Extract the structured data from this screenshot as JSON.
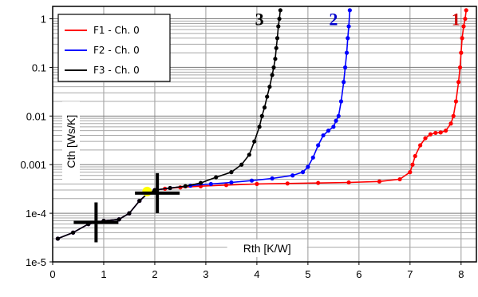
{
  "chart_data": {
    "type": "scatter",
    "xlabel": "Rth  [K/W]",
    "ylabel": "Cth  [Ws/K]",
    "xlim": [
      0,
      8.3
    ],
    "ylim": [
      1e-05,
      1.8
    ],
    "yscale": "log",
    "grid": true,
    "legend_position": "top-left",
    "x_ticks": [
      "0",
      "1",
      "2",
      "3",
      "4",
      "5",
      "6",
      "7",
      "8"
    ],
    "y_ticks": [
      "1e-5",
      "1e-4",
      "0.001",
      "0.01",
      "0.1",
      "1"
    ],
    "colors": {
      "F1 - Ch. 0": "#ff0000",
      "F2 - Ch. 0": "#0000ff",
      "F3 - Ch. 0": "#000000"
    },
    "series": [
      {
        "name": "F1 - Ch. 0",
        "color": "#ff0000",
        "x": [
          0.1,
          0.4,
          0.7,
          1.0,
          1.3,
          1.5,
          1.7,
          1.85,
          2.0,
          2.2,
          2.5,
          2.9,
          3.4,
          4.0,
          4.6,
          5.2,
          5.8,
          6.4,
          6.8,
          7.0,
          7.05,
          7.1,
          7.2,
          7.3,
          7.4,
          7.5,
          7.6,
          7.7,
          7.8,
          7.85,
          7.9,
          7.95,
          7.98,
          8.0,
          8.02,
          8.05,
          8.08,
          8.1
        ],
        "y": [
          3e-05,
          4e-05,
          6e-05,
          7e-05,
          7.5e-05,
          0.0001,
          0.00018,
          0.00025,
          0.0003,
          0.00032,
          0.00034,
          0.00036,
          0.00038,
          0.0004,
          0.00041,
          0.00042,
          0.00043,
          0.00045,
          0.0005,
          0.0007,
          0.001,
          0.0015,
          0.0025,
          0.0035,
          0.0042,
          0.0045,
          0.0046,
          0.005,
          0.007,
          0.01,
          0.02,
          0.05,
          0.1,
          0.2,
          0.4,
          0.7,
          1.0,
          1.5
        ]
      },
      {
        "name": "F2 - Ch. 0",
        "color": "#0000ff",
        "x": [
          0.1,
          0.4,
          0.7,
          1.0,
          1.3,
          1.5,
          1.7,
          1.85,
          2.0,
          2.3,
          2.7,
          3.1,
          3.5,
          3.9,
          4.3,
          4.7,
          4.9,
          5.0,
          5.1,
          5.2,
          5.3,
          5.4,
          5.5,
          5.55,
          5.6,
          5.65,
          5.7,
          5.73,
          5.76,
          5.78,
          5.8,
          5.82
        ],
        "y": [
          3e-05,
          4e-05,
          6e-05,
          7e-05,
          7.5e-05,
          0.0001,
          0.00018,
          0.00025,
          0.0003,
          0.00033,
          0.00037,
          0.0004,
          0.00043,
          0.00047,
          0.00052,
          0.0006,
          0.0007,
          0.0009,
          0.0014,
          0.0025,
          0.004,
          0.005,
          0.006,
          0.008,
          0.01,
          0.02,
          0.05,
          0.1,
          0.2,
          0.4,
          0.7,
          1.5
        ]
      },
      {
        "name": "F3 - Ch. 0",
        "color": "#000000",
        "x": [
          0.1,
          0.4,
          0.7,
          1.0,
          1.3,
          1.5,
          1.7,
          1.85,
          2.0,
          2.3,
          2.6,
          2.9,
          3.2,
          3.5,
          3.7,
          3.85,
          3.95,
          4.05,
          4.1,
          4.15,
          4.2,
          4.25,
          4.3,
          4.33,
          4.36,
          4.38,
          4.4,
          4.42,
          4.44,
          4.46
        ],
        "y": [
          3e-05,
          4e-05,
          6e-05,
          7e-05,
          7.5e-05,
          0.0001,
          0.00018,
          0.00025,
          0.0003,
          0.00033,
          0.00036,
          0.00042,
          0.00055,
          0.0007,
          0.001,
          0.0016,
          0.003,
          0.006,
          0.01,
          0.015,
          0.025,
          0.04,
          0.07,
          0.1,
          0.15,
          0.25,
          0.4,
          0.7,
          1.0,
          1.5
        ]
      }
    ],
    "annotations": [
      {
        "text": "3",
        "x": 4.05,
        "y": 1.0,
        "color": "#000000"
      },
      {
        "text": "2",
        "x": 5.5,
        "y": 1.0,
        "color": "#0000cc"
      },
      {
        "text": "1",
        "x": 7.9,
        "y": 1.0,
        "color": "#cc0000"
      }
    ],
    "crosshairs": [
      {
        "x": 0.85,
        "y": 6.5e-05
      },
      {
        "x": 2.05,
        "y": 0.00026
      }
    ],
    "highlight_points": [
      {
        "x": 1.85,
        "y": 0.00028,
        "color": "#ffff00"
      }
    ]
  }
}
